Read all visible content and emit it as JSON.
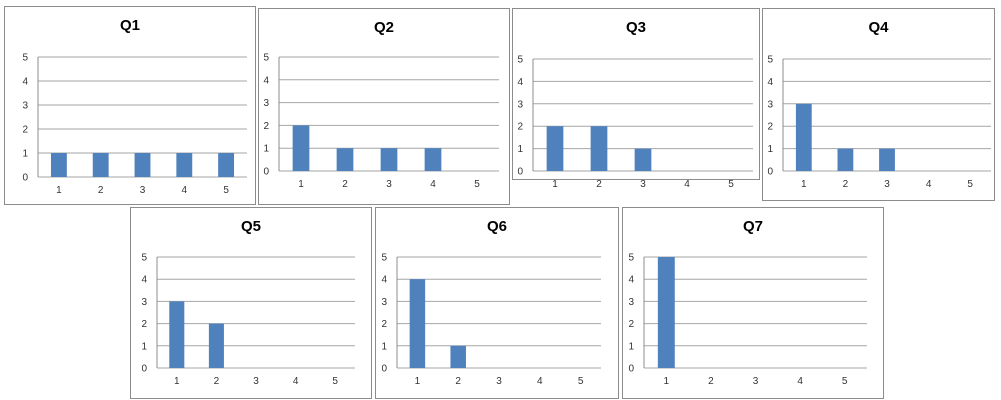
{
  "chart_data": [
    {
      "type": "bar",
      "title": "Q1",
      "categories": [
        "1",
        "2",
        "3",
        "4",
        "5"
      ],
      "values": [
        1,
        1,
        1,
        1,
        1
      ],
      "ylim": [
        0,
        5
      ],
      "yticks": [
        "0",
        "1",
        "2",
        "3",
        "4",
        "5"
      ],
      "grid": true,
      "color": "#4f81bd"
    },
    {
      "type": "bar",
      "title": "Q2",
      "categories": [
        "1",
        "2",
        "3",
        "4",
        "5"
      ],
      "values": [
        2,
        1,
        1,
        1,
        0
      ],
      "ylim": [
        0,
        5
      ],
      "yticks": [
        "0",
        "1",
        "2",
        "3",
        "4",
        "5"
      ],
      "grid": true,
      "color": "#4f81bd"
    },
    {
      "type": "bar",
      "title": "Q3",
      "categories": [
        "1",
        "2",
        "3",
        "4",
        "5"
      ],
      "values": [
        2,
        2,
        1,
        0,
        0
      ],
      "ylim": [
        0,
        5
      ],
      "yticks": [
        "0",
        "1",
        "2",
        "3",
        "4",
        "5"
      ],
      "grid": true,
      "color": "#4f81bd"
    },
    {
      "type": "bar",
      "title": "Q4",
      "categories": [
        "1",
        "2",
        "3",
        "4",
        "5"
      ],
      "values": [
        3,
        1,
        1,
        0,
        0
      ],
      "ylim": [
        0,
        5
      ],
      "yticks": [
        "0",
        "1",
        "2",
        "3",
        "4",
        "5"
      ],
      "grid": true,
      "color": "#4f81bd"
    },
    {
      "type": "bar",
      "title": "Q5",
      "categories": [
        "1",
        "2",
        "3",
        "4",
        "5"
      ],
      "values": [
        3,
        2,
        0,
        0,
        0
      ],
      "ylim": [
        0,
        5
      ],
      "yticks": [
        "0",
        "1",
        "2",
        "3",
        "4",
        "5"
      ],
      "grid": true,
      "color": "#4f81bd"
    },
    {
      "type": "bar",
      "title": "Q6",
      "categories": [
        "1",
        "2",
        "3",
        "4",
        "5"
      ],
      "values": [
        4,
        1,
        0,
        0,
        0
      ],
      "ylim": [
        0,
        5
      ],
      "yticks": [
        "0",
        "1",
        "2",
        "3",
        "4",
        "5"
      ],
      "grid": true,
      "color": "#4f81bd"
    },
    {
      "type": "bar",
      "title": "Q7",
      "categories": [
        "1",
        "2",
        "3",
        "4",
        "5"
      ],
      "values": [
        5,
        0,
        0,
        0,
        0
      ],
      "ylim": [
        0,
        5
      ],
      "yticks": [
        "0",
        "1",
        "2",
        "3",
        "4",
        "5"
      ],
      "grid": true,
      "color": "#4f81bd"
    }
  ]
}
